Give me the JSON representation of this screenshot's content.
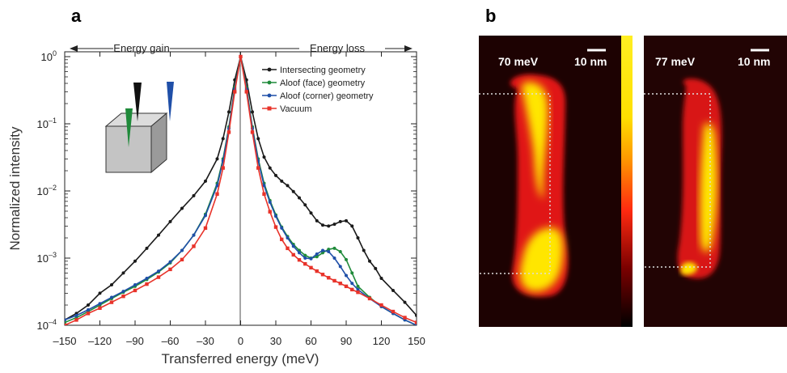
{
  "panels": {
    "a": "a",
    "b": "b"
  },
  "arrows": {
    "gain": "Energy gain",
    "loss": "Energy loss"
  },
  "maps": [
    {
      "energy": "70 meV",
      "scale": "10 nm"
    },
    {
      "energy": "77 meV",
      "scale": "10 nm"
    }
  ],
  "colors": {
    "intersecting": "#1a1a1a",
    "face": "#1f8a3a",
    "corner": "#1f4fa8",
    "vacuum": "#e8332a"
  },
  "chart_data": {
    "type": "line",
    "xlabel": "Transferred energy (meV)",
    "ylabel": "Normalized intensity",
    "xlim": [
      -150,
      150
    ],
    "ylim": [
      0.0001,
      1.5
    ],
    "yscale": "log",
    "xticks": [
      "–150",
      "–120",
      "–90",
      "–60",
      "–30",
      "0",
      "30",
      "60",
      "90",
      "120",
      "150"
    ],
    "yticks": [
      {
        "base": "10",
        "exp": "–4"
      },
      {
        "base": "10",
        "exp": "–3"
      },
      {
        "base": "10",
        "exp": "–2"
      },
      {
        "base": "10",
        "exp": "–1"
      },
      {
        "base": "10",
        "exp": "0"
      }
    ],
    "legend_position": "top-right",
    "series": [
      {
        "name": "Intersecting geometry",
        "x": [
          -150,
          -140,
          -130,
          -120,
          -110,
          -100,
          -90,
          -80,
          -70,
          -60,
          -50,
          -40,
          -30,
          -20,
          -15,
          -10,
          -5,
          0,
          5,
          10,
          15,
          20,
          25,
          30,
          35,
          40,
          45,
          50,
          55,
          60,
          65,
          70,
          75,
          80,
          85,
          90,
          95,
          100,
          105,
          110,
          115,
          120,
          130,
          140,
          150
        ],
        "y": [
          0.00012,
          0.00015,
          0.0002,
          0.0003,
          0.0004,
          0.0006,
          0.0009,
          0.0014,
          0.0022,
          0.0035,
          0.0055,
          0.0085,
          0.014,
          0.03,
          0.06,
          0.15,
          0.45,
          1.0,
          0.45,
          0.15,
          0.06,
          0.032,
          0.022,
          0.017,
          0.014,
          0.012,
          0.0098,
          0.0079,
          0.0062,
          0.0047,
          0.0036,
          0.0031,
          0.003,
          0.0032,
          0.0035,
          0.0036,
          0.003,
          0.002,
          0.0013,
          0.0009,
          0.0007,
          0.0005,
          0.00033,
          0.00022,
          0.00014
        ]
      },
      {
        "name": "Aloof (face) geometry",
        "x": [
          -150,
          -140,
          -130,
          -120,
          -110,
          -100,
          -90,
          -80,
          -70,
          -60,
          -50,
          -40,
          -30,
          -20,
          -15,
          -10,
          -5,
          0,
          5,
          10,
          15,
          20,
          25,
          30,
          35,
          40,
          45,
          50,
          55,
          60,
          65,
          70,
          75,
          80,
          85,
          90,
          95,
          100,
          110,
          120,
          130,
          140,
          150
        ],
        "y": [
          0.00011,
          0.00013,
          0.00016,
          0.0002,
          0.00025,
          0.00031,
          0.00038,
          0.00048,
          0.00062,
          0.00085,
          0.0013,
          0.0022,
          0.0045,
          0.013,
          0.03,
          0.09,
          0.35,
          1.0,
          0.35,
          0.09,
          0.03,
          0.013,
          0.0072,
          0.0044,
          0.0029,
          0.0021,
          0.0016,
          0.0013,
          0.0011,
          0.001,
          0.00105,
          0.0012,
          0.00135,
          0.0014,
          0.00125,
          0.00095,
          0.0006,
          0.00038,
          0.00026,
          0.00019,
          0.00015,
          0.00012,
          0.0001
        ]
      },
      {
        "name": "Aloof (corner) geometry",
        "x": [
          -150,
          -140,
          -130,
          -120,
          -110,
          -100,
          -90,
          -80,
          -70,
          -60,
          -50,
          -40,
          -30,
          -20,
          -15,
          -10,
          -5,
          0,
          5,
          10,
          15,
          20,
          25,
          30,
          35,
          40,
          45,
          50,
          55,
          60,
          65,
          70,
          75,
          80,
          85,
          90,
          95,
          100,
          110,
          120,
          130,
          140,
          150
        ],
        "y": [
          0.00012,
          0.00014,
          0.00017,
          0.00021,
          0.00026,
          0.00032,
          0.0004,
          0.0005,
          0.00064,
          0.00088,
          0.0013,
          0.0022,
          0.0043,
          0.012,
          0.028,
          0.085,
          0.33,
          1.0,
          0.33,
          0.085,
          0.028,
          0.012,
          0.0068,
          0.0042,
          0.0028,
          0.002,
          0.0015,
          0.0012,
          0.001,
          0.00098,
          0.00115,
          0.0013,
          0.00125,
          0.001,
          0.00075,
          0.00055,
          0.00042,
          0.00034,
          0.00025,
          0.00019,
          0.00015,
          0.00012,
          0.0001
        ]
      },
      {
        "name": "Vacuum",
        "x": [
          -150,
          -140,
          -130,
          -120,
          -110,
          -100,
          -90,
          -80,
          -70,
          -60,
          -50,
          -40,
          -30,
          -20,
          -15,
          -10,
          -5,
          0,
          5,
          10,
          15,
          20,
          25,
          30,
          35,
          40,
          45,
          50,
          55,
          60,
          65,
          70,
          75,
          80,
          85,
          90,
          95,
          100,
          110,
          120,
          130,
          140,
          150
        ],
        "y": [
          0.0001,
          0.00012,
          0.00015,
          0.00018,
          0.00022,
          0.00027,
          0.00033,
          0.00041,
          0.00052,
          0.00068,
          0.00095,
          0.0015,
          0.0028,
          0.009,
          0.022,
          0.075,
          0.3,
          1.0,
          0.3,
          0.075,
          0.022,
          0.009,
          0.0049,
          0.0029,
          0.0019,
          0.0014,
          0.00112,
          0.00094,
          0.00082,
          0.00072,
          0.00064,
          0.00057,
          0.00051,
          0.00046,
          0.00042,
          0.00038,
          0.00034,
          0.00031,
          0.00025,
          0.0002,
          0.00016,
          0.00013,
          0.00011
        ]
      }
    ]
  }
}
